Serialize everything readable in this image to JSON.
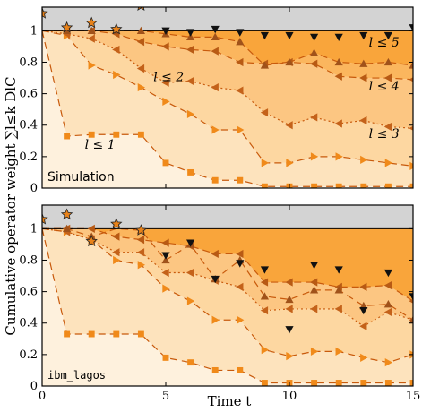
{
  "figure": {
    "xlabel": "Time t",
    "ylabel": "Cumulative operator weight ∑l≤k DlC"
  },
  "chart_data": [
    {
      "type": "area",
      "panel_label": "Simulation",
      "xlim": [
        0,
        15
      ],
      "ylim": [
        0,
        1.15
      ],
      "xticks": [
        0,
        5,
        10,
        15
      ],
      "yticks": [
        0,
        0.2,
        0.4,
        0.6,
        0.8,
        1
      ],
      "ytick_labels": [
        "0",
        "0.2",
        "0.4",
        "0.6",
        "0.8",
        "1"
      ],
      "region_labels": [
        "l ≤ 1",
        "l ≤ 2",
        "l ≤ 3",
        "l ≤ 4",
        "l ≤ 5"
      ],
      "x": [
        0,
        1,
        2,
        3,
        4,
        5,
        6,
        7,
        8,
        9,
        10,
        11,
        12,
        13,
        14,
        15
      ],
      "series": [
        {
          "marker": "square",
          "values": [
            1.0,
            0.33,
            0.34,
            0.34,
            0.34,
            0.16,
            0.1,
            0.05,
            0.05,
            0.01,
            0.01,
            0.01,
            0.01,
            0.01,
            0.01,
            0.01
          ]
        },
        {
          "marker": "triangle-right",
          "values": [
            1.0,
            0.97,
            0.78,
            0.72,
            0.64,
            0.55,
            0.47,
            0.37,
            0.37,
            0.16,
            0.16,
            0.2,
            0.2,
            0.18,
            0.16,
            0.14
          ]
        },
        {
          "marker": "triangle-left",
          "values": [
            1.0,
            0.98,
            0.95,
            0.88,
            0.76,
            0.67,
            0.68,
            0.64,
            0.62,
            0.48,
            0.4,
            0.45,
            0.41,
            0.43,
            0.39,
            0.38
          ]
        },
        {
          "marker": "triangle-left",
          "values": [
            1.0,
            1.0,
            1.0,
            0.98,
            0.93,
            0.9,
            0.88,
            0.87,
            0.8,
            0.79,
            0.8,
            0.79,
            0.71,
            0.7,
            0.7,
            0.69
          ]
        },
        {
          "marker": "triangle-up",
          "values": [
            1.0,
            1.0,
            1.0,
            1.0,
            1.0,
            0.98,
            0.96,
            0.96,
            0.93,
            0.78,
            0.8,
            0.86,
            0.8,
            0.79,
            0.8,
            0.78
          ]
        },
        {
          "marker": "triangle-down",
          "values": [
            1.11,
            1.02,
            1.05,
            1.01,
            1.16,
            1.0,
            0.99,
            1.01,
            0.99,
            0.97,
            0.97,
            0.96,
            0.96,
            0.97,
            0.97,
            1.02
          ]
        }
      ]
    },
    {
      "type": "area",
      "panel_label": "ibm_lagos",
      "xlim": [
        0,
        15
      ],
      "ylim": [
        0,
        1.15
      ],
      "xticks": [
        0,
        5,
        10,
        15
      ],
      "yticks": [
        0,
        0.2,
        0.4,
        0.6,
        0.8,
        1
      ],
      "ytick_labels": [
        "0",
        "0.2",
        "0.4",
        "0.6",
        "0.8",
        "1"
      ],
      "x": [
        0,
        1,
        2,
        3,
        4,
        5,
        6,
        7,
        8,
        9,
        10,
        11,
        12,
        13,
        14,
        15
      ],
      "series": [
        {
          "marker": "square",
          "values": [
            1.0,
            0.33,
            0.33,
            0.33,
            0.33,
            0.18,
            0.15,
            0.1,
            0.1,
            0.02,
            0.02,
            0.02,
            0.02,
            0.02,
            0.02,
            0.02
          ]
        },
        {
          "marker": "triangle-right",
          "values": [
            1.0,
            0.98,
            0.93,
            0.8,
            0.77,
            0.62,
            0.54,
            0.42,
            0.42,
            0.23,
            0.19,
            0.22,
            0.22,
            0.18,
            0.15,
            0.2
          ]
        },
        {
          "marker": "triangle-left",
          "values": [
            1.0,
            0.98,
            0.93,
            0.85,
            0.85,
            0.72,
            0.72,
            0.67,
            0.63,
            0.48,
            0.49,
            0.49,
            0.49,
            0.38,
            0.47,
            0.42
          ]
        },
        {
          "marker": "triangle-left",
          "values": [
            1.0,
            1.0,
            1.0,
            0.95,
            0.93,
            0.91,
            0.89,
            0.84,
            0.84,
            0.66,
            0.66,
            0.66,
            0.63,
            0.63,
            0.64,
            0.54
          ]
        },
        {
          "marker": "triangle-up",
          "values": [
            1.0,
            1.0,
            0.95,
            1.03,
            0.99,
            0.8,
            0.9,
            0.68,
            0.8,
            0.57,
            0.55,
            0.61,
            0.61,
            0.51,
            0.52,
            0.42
          ]
        },
        {
          "marker": "triangle-down",
          "values": [
            1.06,
            1.09,
            0.92,
            1.03,
            0.99,
            0.83,
            0.91,
            0.68,
            0.78,
            0.74,
            0.36,
            0.77,
            0.74,
            0.48,
            0.72,
            0.57
          ]
        }
      ]
    }
  ]
}
